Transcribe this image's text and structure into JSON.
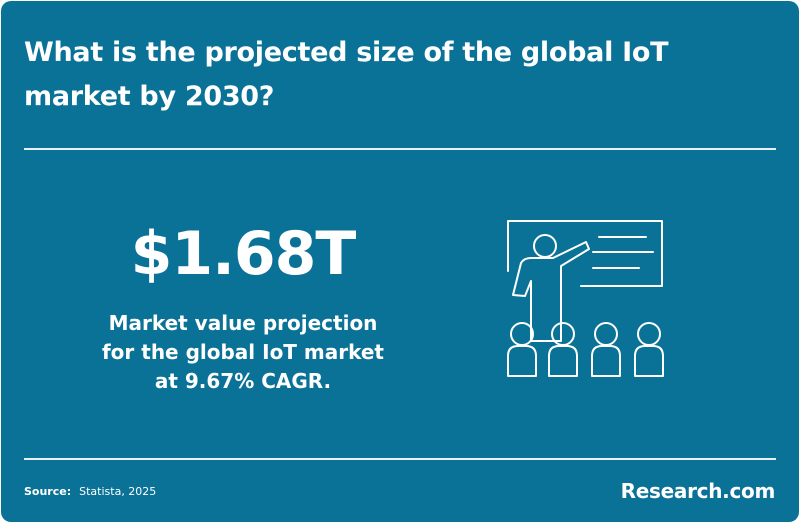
{
  "header": {
    "title": "What is the projected size of the global IoT market by 2030?"
  },
  "stat": {
    "value": "$1.68T",
    "description": [
      "Market value projection",
      "for the global IoT market",
      "at 9.67% CAGR."
    ]
  },
  "footer": {
    "source_label": "Source:",
    "source": "Statista, 2025",
    "brand": "Research.com"
  }
}
